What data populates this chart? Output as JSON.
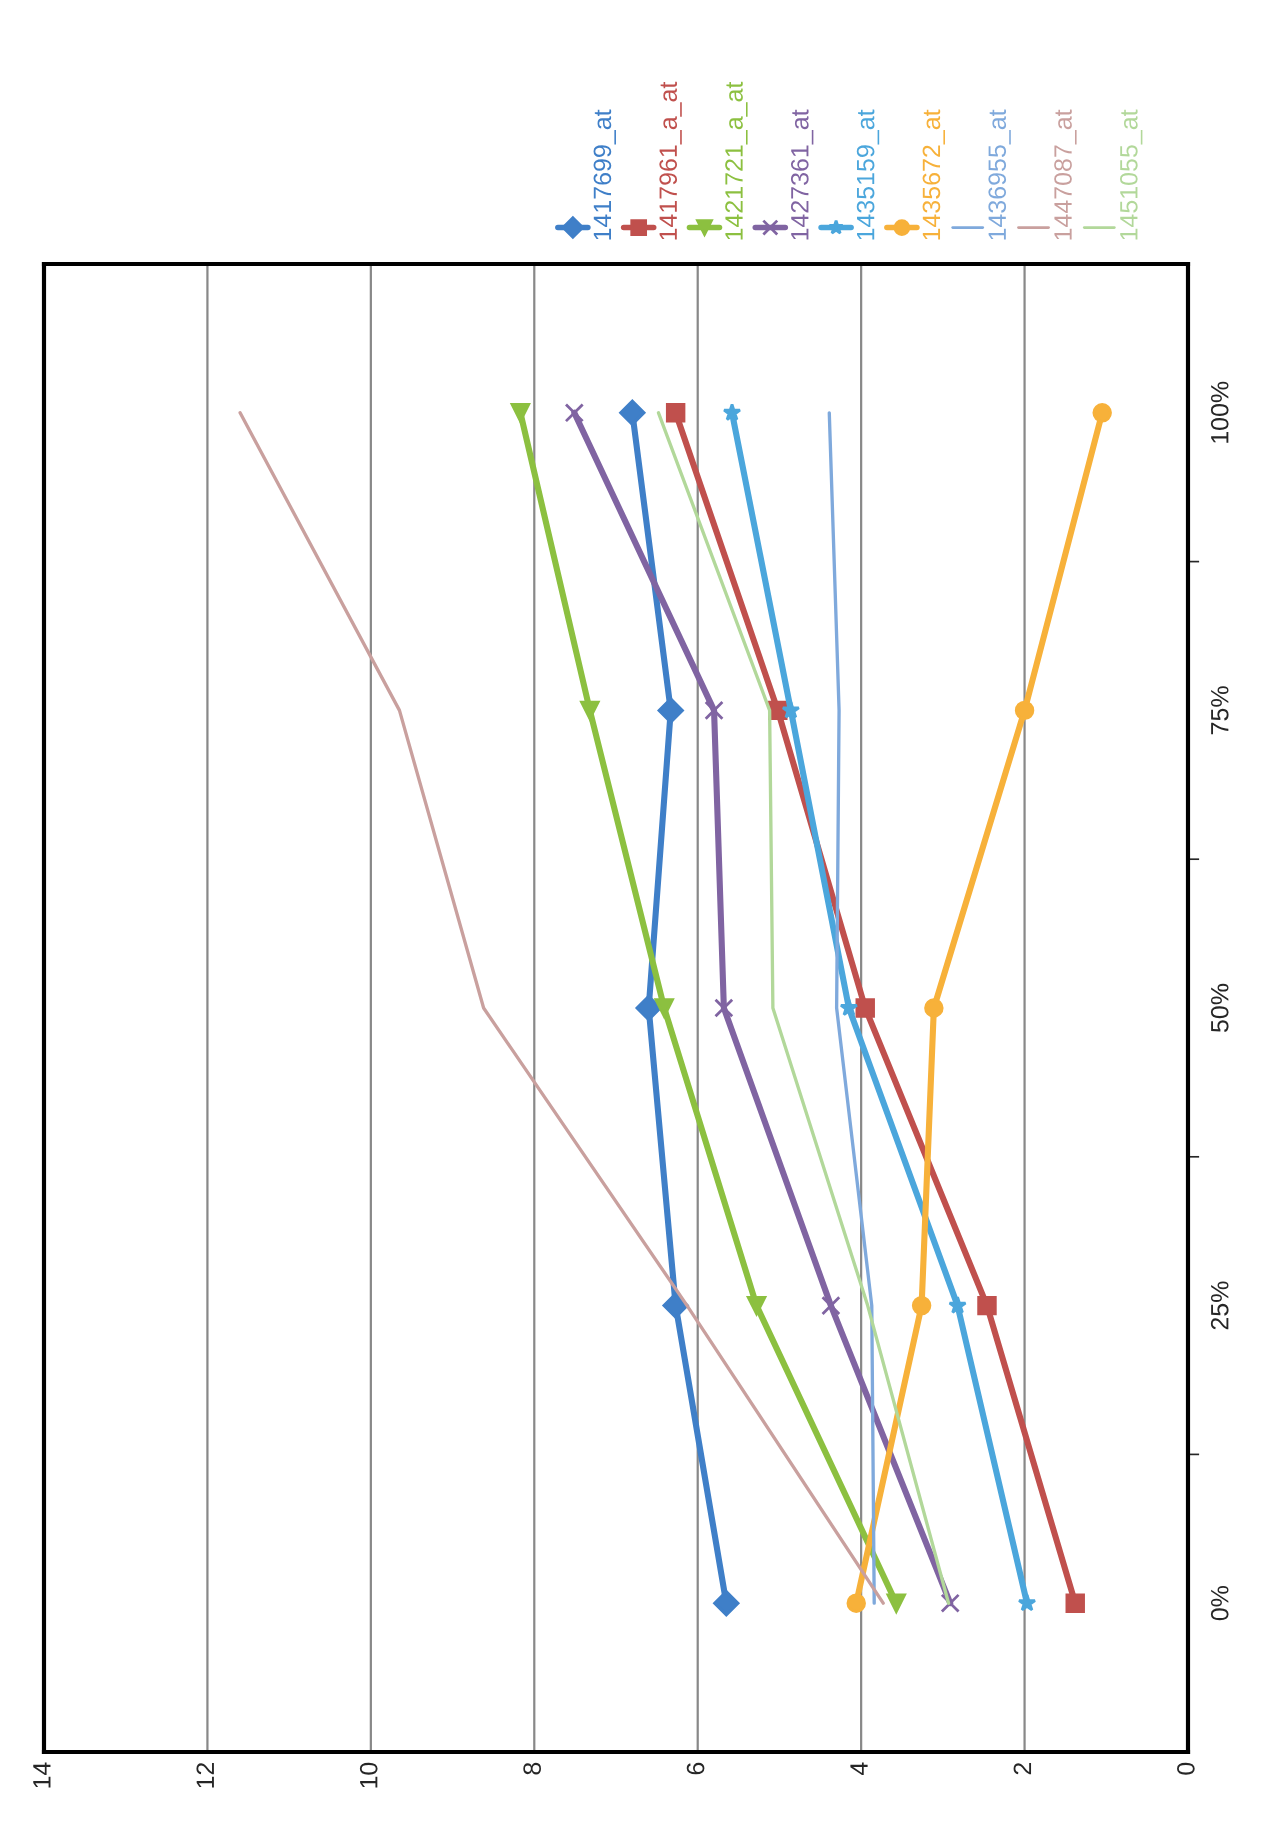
{
  "chart_data": {
    "type": "line",
    "orientation": "horizontal",
    "categories": [
      "100%",
      "75%",
      "50%",
      "25%",
      "0%"
    ],
    "series": [
      {
        "name": "1417699_at",
        "color": "#3f7fc8",
        "marker": "diamond",
        "values": [
          6.8,
          6.33,
          6.6,
          6.27,
          5.65
        ]
      },
      {
        "name": "1417961_a_at",
        "color": "#c0504d",
        "marker": "square",
        "values": [
          6.27,
          5.02,
          3.95,
          2.46,
          1.38
        ]
      },
      {
        "name": "1421721_a_at",
        "color": "#8cc040",
        "marker": "triangle",
        "values": [
          8.17,
          7.32,
          6.41,
          5.28,
          3.57
        ]
      },
      {
        "name": "1427361_at",
        "color": "#8064a2",
        "marker": "cross",
        "values": [
          7.51,
          5.8,
          5.68,
          4.37,
          2.91
        ]
      },
      {
        "name": "1435159_at",
        "color": "#4ba6dc",
        "marker": "star",
        "values": [
          5.58,
          4.86,
          4.15,
          2.82,
          1.97
        ]
      },
      {
        "name": "1435672_at",
        "color": "#f7b13a",
        "marker": "circle",
        "values": [
          1.05,
          2.0,
          3.11,
          3.26,
          4.06
        ]
      },
      {
        "name": "1436955_at",
        "color": "#7fa9dc",
        "marker": "none",
        "values": [
          4.39,
          4.27,
          4.3,
          3.87,
          3.84
        ]
      },
      {
        "name": "1447087_at",
        "color": "#c9a09e",
        "marker": "none",
        "values": [
          11.6,
          9.65,
          8.62,
          6.13,
          3.73
        ]
      },
      {
        "name": "1451055_at",
        "color": "#b2d89a",
        "marker": "none",
        "values": [
          6.48,
          5.12,
          5.08,
          3.92,
          2.93
        ]
      }
    ],
    "xlim": [
      14,
      0
    ],
    "xticks": [
      0,
      2,
      4,
      6,
      8,
      10,
      12,
      14
    ],
    "grid": "x",
    "legend": "top right"
  }
}
